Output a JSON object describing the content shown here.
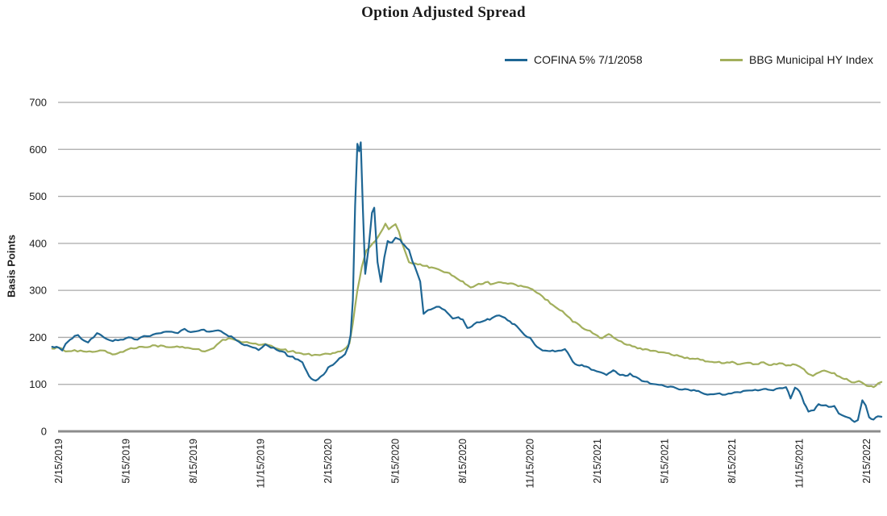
{
  "title": "Option Adjusted Spread",
  "colors": {
    "text": "#1a1a1a",
    "gridline": "#a9a9a9",
    "axis_line": "#8c8c8c",
    "background": "#ffffff",
    "cofina_blue": "#1e6694",
    "bbg_olive": "#a2af5c"
  },
  "chart_data": {
    "type": "line",
    "title": "Option Adjusted Spread",
    "xlabel": "",
    "ylabel": "Basis Points",
    "ylim": [
      0,
      700
    ],
    "yticks": [
      0,
      100,
      200,
      300,
      400,
      500,
      600,
      700
    ],
    "grid": "horizontal gridlines on",
    "legend_position": "top",
    "x_unit": "months since 2019-02-15",
    "xticks_months": [
      0,
      3,
      6,
      9,
      12,
      15,
      18,
      21,
      24,
      27,
      30,
      33,
      36
    ],
    "xtick_labels": [
      "2/15/2019",
      "5/15/2019",
      "8/15/2019",
      "11/15/2019",
      "2/15/2020",
      "5/15/2020",
      "8/15/2020",
      "11/15/2020",
      "2/15/2021",
      "5/15/2021",
      "8/15/2021",
      "11/15/2021",
      "2/15/2022"
    ],
    "series": [
      {
        "name": "COFINA 5% 7/1/2058",
        "color": "#1e6694",
        "points": [
          [
            -0.3,
            180
          ],
          [
            0,
            178
          ],
          [
            0.15,
            172
          ],
          [
            0.3,
            186
          ],
          [
            0.5,
            195
          ],
          [
            0.7,
            203
          ],
          [
            0.85,
            205
          ],
          [
            1.0,
            197
          ],
          [
            1.3,
            189
          ],
          [
            1.55,
            200
          ],
          [
            1.7,
            209
          ],
          [
            2.0,
            200
          ],
          [
            2.4,
            192
          ],
          [
            2.75,
            195
          ],
          [
            3.1,
            200
          ],
          [
            3.5,
            195
          ],
          [
            3.8,
            203
          ],
          [
            4.2,
            206
          ],
          [
            4.55,
            209
          ],
          [
            4.9,
            212
          ],
          [
            5.3,
            209
          ],
          [
            5.6,
            218
          ],
          [
            5.75,
            213
          ],
          [
            6.0,
            212
          ],
          [
            6.35,
            216
          ],
          [
            6.7,
            212
          ],
          [
            7.1,
            215
          ],
          [
            7.45,
            206
          ],
          [
            7.8,
            198
          ],
          [
            8.15,
            186
          ],
          [
            8.5,
            181
          ],
          [
            8.9,
            173
          ],
          [
            9.2,
            185
          ],
          [
            9.45,
            178
          ],
          [
            9.95,
            170
          ],
          [
            10.3,
            159
          ],
          [
            10.65,
            153
          ],
          [
            10.85,
            147
          ],
          [
            11.05,
            127
          ],
          [
            11.25,
            112
          ],
          [
            11.45,
            108
          ],
          [
            11.65,
            116
          ],
          [
            11.8,
            121
          ],
          [
            12.0,
            136
          ],
          [
            12.2,
            141
          ],
          [
            12.4,
            150
          ],
          [
            12.6,
            158
          ],
          [
            12.75,
            164
          ],
          [
            12.9,
            181
          ],
          [
            13.0,
            205
          ],
          [
            13.1,
            280
          ],
          [
            13.2,
            480
          ],
          [
            13.3,
            612
          ],
          [
            13.38,
            596
          ],
          [
            13.45,
            615
          ],
          [
            13.55,
            470
          ],
          [
            13.65,
            335
          ],
          [
            13.8,
            390
          ],
          [
            13.95,
            465
          ],
          [
            14.05,
            476
          ],
          [
            14.2,
            360
          ],
          [
            14.35,
            318
          ],
          [
            14.5,
            370
          ],
          [
            14.65,
            405
          ],
          [
            14.85,
            402
          ],
          [
            15.0,
            412
          ],
          [
            15.2,
            408
          ],
          [
            15.4,
            396
          ],
          [
            15.6,
            386
          ],
          [
            15.75,
            362
          ],
          [
            15.95,
            339
          ],
          [
            16.1,
            319
          ],
          [
            16.25,
            250
          ],
          [
            16.45,
            258
          ],
          [
            16.7,
            262
          ],
          [
            16.95,
            265
          ],
          [
            17.2,
            258
          ],
          [
            17.4,
            248
          ],
          [
            17.55,
            240
          ],
          [
            17.8,
            243
          ],
          [
            18.0,
            238
          ],
          [
            18.2,
            220
          ],
          [
            18.5,
            228
          ],
          [
            18.75,
            232
          ],
          [
            19.0,
            236
          ],
          [
            19.3,
            241
          ],
          [
            19.5,
            246
          ],
          [
            19.75,
            244
          ],
          [
            20.0,
            236
          ],
          [
            20.3,
            228
          ],
          [
            20.6,
            213
          ],
          [
            20.75,
            205
          ],
          [
            21.0,
            199
          ],
          [
            21.3,
            180
          ],
          [
            21.55,
            172
          ],
          [
            21.8,
            171
          ],
          [
            22.1,
            170
          ],
          [
            22.4,
            172
          ],
          [
            22.55,
            175
          ],
          [
            22.9,
            148
          ],
          [
            23.2,
            140
          ],
          [
            23.5,
            138
          ],
          [
            23.95,
            128
          ],
          [
            24.4,
            120
          ],
          [
            24.7,
            130
          ],
          [
            25.0,
            120
          ],
          [
            25.25,
            118
          ],
          [
            25.45,
            123
          ],
          [
            25.85,
            112
          ],
          [
            26.1,
            106
          ],
          [
            26.6,
            100
          ],
          [
            27.0,
            96
          ],
          [
            27.5,
            92
          ],
          [
            27.9,
            90
          ],
          [
            28.3,
            88
          ],
          [
            28.6,
            83
          ],
          [
            28.9,
            78
          ],
          [
            29.3,
            80
          ],
          [
            29.7,
            78
          ],
          [
            30.1,
            83
          ],
          [
            30.5,
            86
          ],
          [
            30.9,
            87
          ],
          [
            31.4,
            90
          ],
          [
            31.7,
            88
          ],
          [
            32.1,
            92
          ],
          [
            32.4,
            94
          ],
          [
            32.6,
            70
          ],
          [
            32.8,
            93
          ],
          [
            33.0,
            85
          ],
          [
            33.2,
            60
          ],
          [
            33.4,
            42
          ],
          [
            33.65,
            45
          ],
          [
            33.85,
            58
          ],
          [
            34.05,
            55
          ],
          [
            34.3,
            52
          ],
          [
            34.55,
            54
          ],
          [
            34.75,
            38
          ],
          [
            35.0,
            32
          ],
          [
            35.25,
            28
          ],
          [
            35.45,
            20
          ],
          [
            35.6,
            24
          ],
          [
            35.8,
            66
          ],
          [
            35.95,
            55
          ],
          [
            36.1,
            30
          ],
          [
            36.3,
            25
          ],
          [
            36.5,
            32
          ],
          [
            36.65,
            31
          ]
        ]
      },
      {
        "name": "BBG Municipal HY Index",
        "color": "#a2af5c",
        "points": [
          [
            -0.3,
            176
          ],
          [
            0,
            178
          ],
          [
            0.3,
            170
          ],
          [
            0.7,
            173
          ],
          [
            1.1,
            170
          ],
          [
            1.5,
            169
          ],
          [
            1.95,
            172
          ],
          [
            2.5,
            164
          ],
          [
            3.1,
            175
          ],
          [
            3.7,
            180
          ],
          [
            4.3,
            183
          ],
          [
            4.9,
            179
          ],
          [
            5.5,
            180
          ],
          [
            6.1,
            175
          ],
          [
            6.5,
            170
          ],
          [
            6.9,
            177
          ],
          [
            7.3,
            195
          ],
          [
            7.7,
            197
          ],
          [
            8.0,
            193
          ],
          [
            8.5,
            188
          ],
          [
            8.9,
            184
          ],
          [
            9.2,
            186
          ],
          [
            9.6,
            178
          ],
          [
            10.0,
            174
          ],
          [
            10.3,
            170
          ],
          [
            10.7,
            167
          ],
          [
            11.0,
            164
          ],
          [
            11.4,
            163
          ],
          [
            11.75,
            164
          ],
          [
            12.0,
            165
          ],
          [
            12.3,
            167
          ],
          [
            12.55,
            170
          ],
          [
            12.8,
            178
          ],
          [
            12.95,
            187
          ],
          [
            13.1,
            230
          ],
          [
            13.3,
            300
          ],
          [
            13.5,
            350
          ],
          [
            13.7,
            385
          ],
          [
            13.9,
            395
          ],
          [
            14.1,
            405
          ],
          [
            14.3,
            420
          ],
          [
            14.45,
            432
          ],
          [
            14.55,
            442
          ],
          [
            14.7,
            430
          ],
          [
            14.85,
            436
          ],
          [
            15.0,
            441
          ],
          [
            15.15,
            425
          ],
          [
            15.3,
            400
          ],
          [
            15.45,
            380
          ],
          [
            15.6,
            360
          ],
          [
            15.75,
            357
          ],
          [
            16.0,
            355
          ],
          [
            16.3,
            352
          ],
          [
            16.6,
            349
          ],
          [
            16.9,
            345
          ],
          [
            17.3,
            338
          ],
          [
            17.6,
            330
          ],
          [
            17.9,
            320
          ],
          [
            18.2,
            311
          ],
          [
            18.35,
            306
          ],
          [
            18.7,
            314
          ],
          [
            19.0,
            317
          ],
          [
            19.35,
            314
          ],
          [
            19.7,
            317
          ],
          [
            20.0,
            314
          ],
          [
            20.35,
            312
          ],
          [
            20.7,
            308
          ],
          [
            21.0,
            304
          ],
          [
            21.3,
            295
          ],
          [
            21.55,
            287
          ],
          [
            21.9,
            272
          ],
          [
            22.2,
            262
          ],
          [
            22.55,
            250
          ],
          [
            22.9,
            233
          ],
          [
            23.2,
            226
          ],
          [
            23.55,
            215
          ],
          [
            23.9,
            206
          ],
          [
            24.2,
            198
          ],
          [
            24.5,
            207
          ],
          [
            24.8,
            197
          ],
          [
            25.2,
            186
          ],
          [
            25.55,
            181
          ],
          [
            25.9,
            177
          ],
          [
            26.25,
            174
          ],
          [
            26.6,
            171
          ],
          [
            26.95,
            168
          ],
          [
            27.3,
            163
          ],
          [
            27.65,
            160
          ],
          [
            28.0,
            157
          ],
          [
            28.35,
            154
          ],
          [
            28.7,
            152
          ],
          [
            29.0,
            148
          ],
          [
            29.3,
            147
          ],
          [
            29.65,
            145
          ],
          [
            30.0,
            148
          ],
          [
            30.35,
            143
          ],
          [
            30.7,
            146
          ],
          [
            31.05,
            143
          ],
          [
            31.4,
            147
          ],
          [
            31.75,
            141
          ],
          [
            32.1,
            145
          ],
          [
            32.4,
            140
          ],
          [
            32.7,
            143
          ],
          [
            33.0,
            138
          ],
          [
            33.2,
            132
          ],
          [
            33.4,
            122
          ],
          [
            33.6,
            118
          ],
          [
            33.9,
            126
          ],
          [
            34.2,
            128
          ],
          [
            34.55,
            124
          ],
          [
            34.9,
            113
          ],
          [
            35.2,
            108
          ],
          [
            35.45,
            104
          ],
          [
            35.65,
            107
          ],
          [
            35.9,
            100
          ],
          [
            36.1,
            96
          ],
          [
            36.3,
            94
          ],
          [
            36.5,
            102
          ],
          [
            36.65,
            105
          ]
        ]
      }
    ]
  }
}
